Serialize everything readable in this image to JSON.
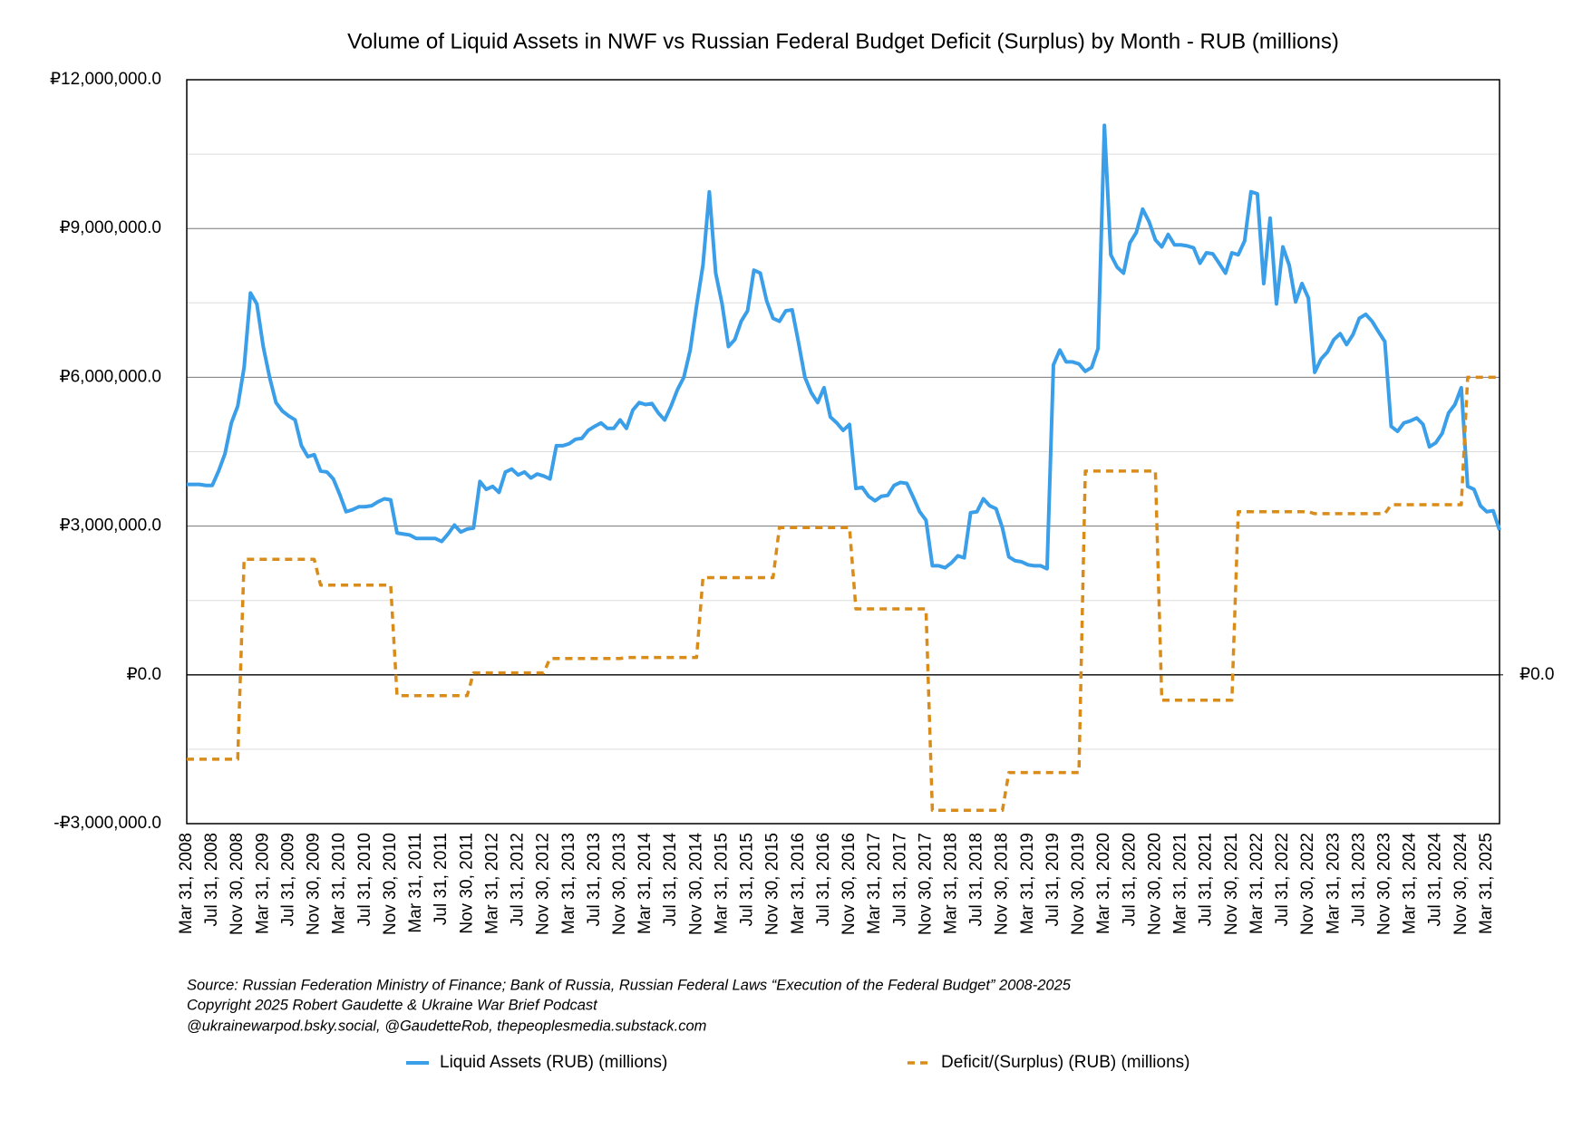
{
  "chart_data": {
    "type": "line",
    "title": "Volume of Liquid Assets in NWF vs Russian Federal Budget Deficit (Surplus) by Month - RUB (millions)",
    "footnotes": [
      "Source: Russian Federation Ministry of Finance; Bank of Russia, Russian Federal Laws “Execution of the Federal Budget” 2008-2025",
      "Copyright 2025 Robert Gaudette & Ukraine War Brief Podcast",
      "@ukrainewarpod.bsky.social, @GaudetteRob, thepeoplesmedia.substack.com"
    ],
    "ylim": [
      -3000000,
      12000000
    ],
    "yticks": [
      {
        "value": -3000000,
        "label": "-₽3,000,000.0"
      },
      {
        "value": 0,
        "label": "₽0.0"
      },
      {
        "value": 3000000,
        "label": "₽3,000,000.0"
      },
      {
        "value": 6000000,
        "label": "₽6,000,000.0"
      },
      {
        "value": 9000000,
        "label": "₽9,000,000.0"
      },
      {
        "value": 12000000,
        "label": "₽12,000,000.0"
      }
    ],
    "minor_yticks": [
      -1500000,
      1500000,
      4500000,
      7500000,
      10500000
    ],
    "y2lim": [
      -3000000,
      12000000
    ],
    "y2ticks": [
      {
        "value": 0,
        "label": "₽0.0"
      }
    ],
    "grid": true,
    "legend": "bottom",
    "categories": [
      "Mar 31, 2008",
      null,
      null,
      null,
      "Jul 31, 2008",
      null,
      null,
      null,
      "Nov 30, 2008",
      null,
      null,
      null,
      "Mar 31, 2009",
      null,
      null,
      null,
      "Jul 31, 2009",
      null,
      null,
      null,
      "Nov 30, 2009",
      null,
      null,
      null,
      "Mar 31, 2010",
      null,
      null,
      null,
      "Jul 31, 2010",
      null,
      null,
      null,
      "Nov 30, 2010",
      null,
      null,
      null,
      "Mar 31, 2011",
      null,
      null,
      null,
      "Jul 31, 2011",
      null,
      null,
      null,
      "Nov 30, 2011",
      null,
      null,
      null,
      "Mar 31, 2012",
      null,
      null,
      null,
      "Jul 31, 2012",
      null,
      null,
      null,
      "Nov 30, 2012",
      null,
      null,
      null,
      "Mar 31, 2013",
      null,
      null,
      null,
      "Jul 31, 2013",
      null,
      null,
      null,
      "Nov 30, 2013",
      null,
      null,
      null,
      "Mar 31, 2014",
      null,
      null,
      null,
      "Jul 31, 2014",
      null,
      null,
      null,
      "Nov 30, 2014",
      null,
      null,
      null,
      "Mar 31, 2015",
      null,
      null,
      null,
      "Jul 31, 2015",
      null,
      null,
      null,
      "Nov 30, 2015",
      null,
      null,
      null,
      "Mar 31, 2016",
      null,
      null,
      null,
      "Jul 31, 2016",
      null,
      null,
      null,
      "Nov 30, 2016",
      null,
      null,
      null,
      "Mar 31, 2017",
      null,
      null,
      null,
      "Jul 31, 2017",
      null,
      null,
      null,
      "Nov 30, 2017",
      null,
      null,
      null,
      "Mar 31, 2018",
      null,
      null,
      null,
      "Jul 31, 2018",
      null,
      null,
      null,
      "Nov 30, 2018",
      null,
      null,
      null,
      "Mar 31, 2019",
      null,
      null,
      null,
      "Jul 31, 2019",
      null,
      null,
      null,
      "Nov 30, 2019",
      null,
      null,
      null,
      "Mar 31, 2020",
      null,
      null,
      null,
      "Jul 31, 2020",
      null,
      null,
      null,
      "Nov 30, 2020",
      null,
      null,
      null,
      "Mar 31, 2021",
      null,
      null,
      null,
      "Jul 31, 2021",
      null,
      null,
      null,
      "Nov 30, 2021",
      null,
      null,
      null,
      "Mar 31, 2022",
      null,
      null,
      null,
      "Jul 31, 2022",
      null,
      null,
      null,
      "Nov 30, 2022",
      null,
      null,
      null,
      "Mar 31, 2023",
      null,
      null,
      null,
      "Jul 31, 2023",
      null,
      null,
      null,
      "Nov 30, 2023",
      null,
      null,
      null,
      "Mar 31, 2024",
      null,
      null,
      null,
      "Jul 31, 2024",
      null,
      null,
      null,
      "Nov 30, 2024",
      null,
      null,
      null,
      "Mar 31, 2025",
      null,
      null
    ],
    "series": [
      {
        "name": "Liquid Assets (RUB) (millions)",
        "color": "#3a9fe8",
        "style": "solid",
        "values": [
          3840000,
          3840000,
          3840000,
          3820000,
          3820000,
          4110000,
          4460000,
          5080000,
          5420000,
          6200000,
          7700000,
          7480000,
          6620000,
          6000000,
          5490000,
          5320000,
          5220000,
          5140000,
          4620000,
          4400000,
          4440000,
          4110000,
          4090000,
          3950000,
          3640000,
          3290000,
          3330000,
          3390000,
          3390000,
          3410000,
          3490000,
          3550000,
          3530000,
          2860000,
          2840000,
          2820000,
          2750000,
          2750000,
          2750000,
          2750000,
          2690000,
          2840000,
          3020000,
          2880000,
          2940000,
          2960000,
          3900000,
          3740000,
          3800000,
          3680000,
          4090000,
          4150000,
          4030000,
          4090000,
          3970000,
          4050000,
          4010000,
          3950000,
          4620000,
          4620000,
          4660000,
          4750000,
          4770000,
          4930000,
          5010000,
          5080000,
          4970000,
          4970000,
          5140000,
          4970000,
          5340000,
          5490000,
          5450000,
          5470000,
          5280000,
          5140000,
          5420000,
          5750000,
          6000000,
          6550000,
          7440000,
          8260000,
          9740000,
          8100000,
          7480000,
          6620000,
          6760000,
          7130000,
          7340000,
          8160000,
          8100000,
          7540000,
          7190000,
          7130000,
          7340000,
          7360000,
          6700000,
          6000000,
          5690000,
          5490000,
          5790000,
          5200000,
          5080000,
          4930000,
          5050000,
          3760000,
          3780000,
          3600000,
          3510000,
          3600000,
          3620000,
          3820000,
          3880000,
          3860000,
          3580000,
          3290000,
          3120000,
          2200000,
          2200000,
          2160000,
          2260000,
          2400000,
          2360000,
          3270000,
          3290000,
          3550000,
          3410000,
          3350000,
          2960000,
          2380000,
          2300000,
          2280000,
          2220000,
          2200000,
          2200000,
          2140000,
          6250000,
          6550000,
          6310000,
          6310000,
          6270000,
          6120000,
          6200000,
          6580000,
          11080000,
          8470000,
          8220000,
          8100000,
          8710000,
          8920000,
          9390000,
          9140000,
          8770000,
          8630000,
          8880000,
          8670000,
          8670000,
          8650000,
          8610000,
          8300000,
          8510000,
          8490000,
          8300000,
          8100000,
          8510000,
          8470000,
          8750000,
          9740000,
          9700000,
          7890000,
          9210000,
          7480000,
          8630000,
          8260000,
          7520000,
          7890000,
          7600000,
          6100000,
          6370000,
          6510000,
          6760000,
          6880000,
          6660000,
          6860000,
          7190000,
          7270000,
          7130000,
          6920000,
          6720000,
          5010000,
          4910000,
          5080000,
          5120000,
          5180000,
          5050000,
          4600000,
          4680000,
          4870000,
          5280000,
          5450000,
          5790000,
          3800000,
          3740000,
          3410000,
          3290000,
          3310000,
          2920000
        ]
      },
      {
        "name": "Deficit/(Surplus) (RUB) (millions)",
        "color": "#d98c1a",
        "style": "dashed",
        "axis": "y2",
        "values": [
          -1700000,
          -1700000,
          -1700000,
          -1700000,
          -1700000,
          -1700000,
          -1700000,
          -1700000,
          -1700000,
          2330000,
          2330000,
          2330000,
          2330000,
          2330000,
          2330000,
          2330000,
          2330000,
          2330000,
          2330000,
          2330000,
          2330000,
          1810000,
          1810000,
          1810000,
          1810000,
          1810000,
          1810000,
          1810000,
          1810000,
          1810000,
          1810000,
          1810000,
          1810000,
          -420000,
          -420000,
          -420000,
          -420000,
          -420000,
          -420000,
          -420000,
          -420000,
          -420000,
          -420000,
          -420000,
          -420000,
          40000,
          40000,
          40000,
          40000,
          40000,
          40000,
          40000,
          40000,
          40000,
          40000,
          40000,
          40000,
          330000,
          330000,
          330000,
          330000,
          330000,
          330000,
          330000,
          330000,
          330000,
          330000,
          330000,
          330000,
          350000,
          350000,
          350000,
          350000,
          350000,
          350000,
          350000,
          350000,
          350000,
          350000,
          350000,
          350000,
          1960000,
          1960000,
          1960000,
          1960000,
          1960000,
          1960000,
          1960000,
          1960000,
          1960000,
          1960000,
          1960000,
          1960000,
          2970000,
          2970000,
          2970000,
          2970000,
          2970000,
          2970000,
          2970000,
          2970000,
          2970000,
          2970000,
          2970000,
          2970000,
          1330000,
          1330000,
          1330000,
          1330000,
          1330000,
          1330000,
          1330000,
          1330000,
          1330000,
          1330000,
          1330000,
          1330000,
          -2730000,
          -2730000,
          -2730000,
          -2730000,
          -2730000,
          -2730000,
          -2730000,
          -2730000,
          -2730000,
          -2730000,
          -2730000,
          -2730000,
          -1970000,
          -1970000,
          -1970000,
          -1970000,
          -1970000,
          -1970000,
          -1970000,
          -1970000,
          -1970000,
          -1970000,
          -1970000,
          -1970000,
          4110000,
          4110000,
          4110000,
          4110000,
          4110000,
          4110000,
          4110000,
          4110000,
          4110000,
          4110000,
          4110000,
          4110000,
          -510000,
          -510000,
          -510000,
          -510000,
          -510000,
          -510000,
          -510000,
          -510000,
          -510000,
          -510000,
          -510000,
          -510000,
          3290000,
          3290000,
          3290000,
          3290000,
          3290000,
          3290000,
          3290000,
          3290000,
          3290000,
          3290000,
          3290000,
          3290000,
          3250000,
          3250000,
          3250000,
          3250000,
          3250000,
          3250000,
          3250000,
          3250000,
          3250000,
          3250000,
          3250000,
          3250000,
          3430000,
          3430000,
          3430000,
          3430000,
          3430000,
          3430000,
          3430000,
          3430000,
          3430000,
          3430000,
          3430000,
          3430000,
          6000000,
          6000000,
          6000000,
          6000000,
          6000000,
          6000000
        ]
      }
    ]
  }
}
